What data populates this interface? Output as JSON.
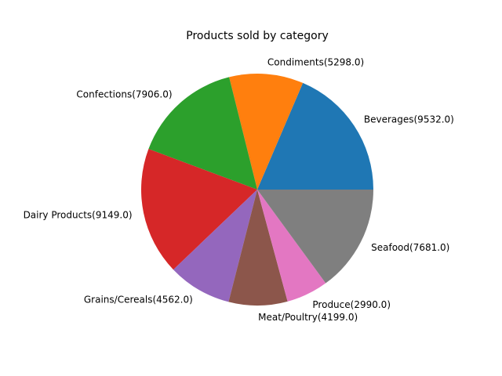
{
  "chart_data": {
    "type": "pie",
    "title": "Products sold by category",
    "slices": [
      {
        "label": "Beverages",
        "value": 9532.0,
        "display": "Beverages(9532.0)",
        "color": "#1f77b4"
      },
      {
        "label": "Condiments",
        "value": 5298.0,
        "display": "Condiments(5298.0)",
        "color": "#ff7f0e"
      },
      {
        "label": "Confections",
        "value": 7906.0,
        "display": "Confections(7906.0)",
        "color": "#2ca02c"
      },
      {
        "label": "Dairy Products",
        "value": 9149.0,
        "display": "Dairy Products(9149.0)",
        "color": "#d62728"
      },
      {
        "label": "Grains/Cereals",
        "value": 4562.0,
        "display": "Grains/Cereals(4562.0)",
        "color": "#9467bd"
      },
      {
        "label": "Meat/Poultry",
        "value": 4199.0,
        "display": "Meat/Poultry(4199.0)",
        "color": "#8c564b"
      },
      {
        "label": "Produce",
        "value": 2990.0,
        "display": "Produce(2990.0)",
        "color": "#e377c2"
      },
      {
        "label": "Seafood",
        "value": 7681.0,
        "display": "Seafood(7681.0)",
        "color": "#7f7f7f"
      }
    ],
    "start_angle_deg": 0,
    "direction": "counterclockwise",
    "legend": "none"
  }
}
